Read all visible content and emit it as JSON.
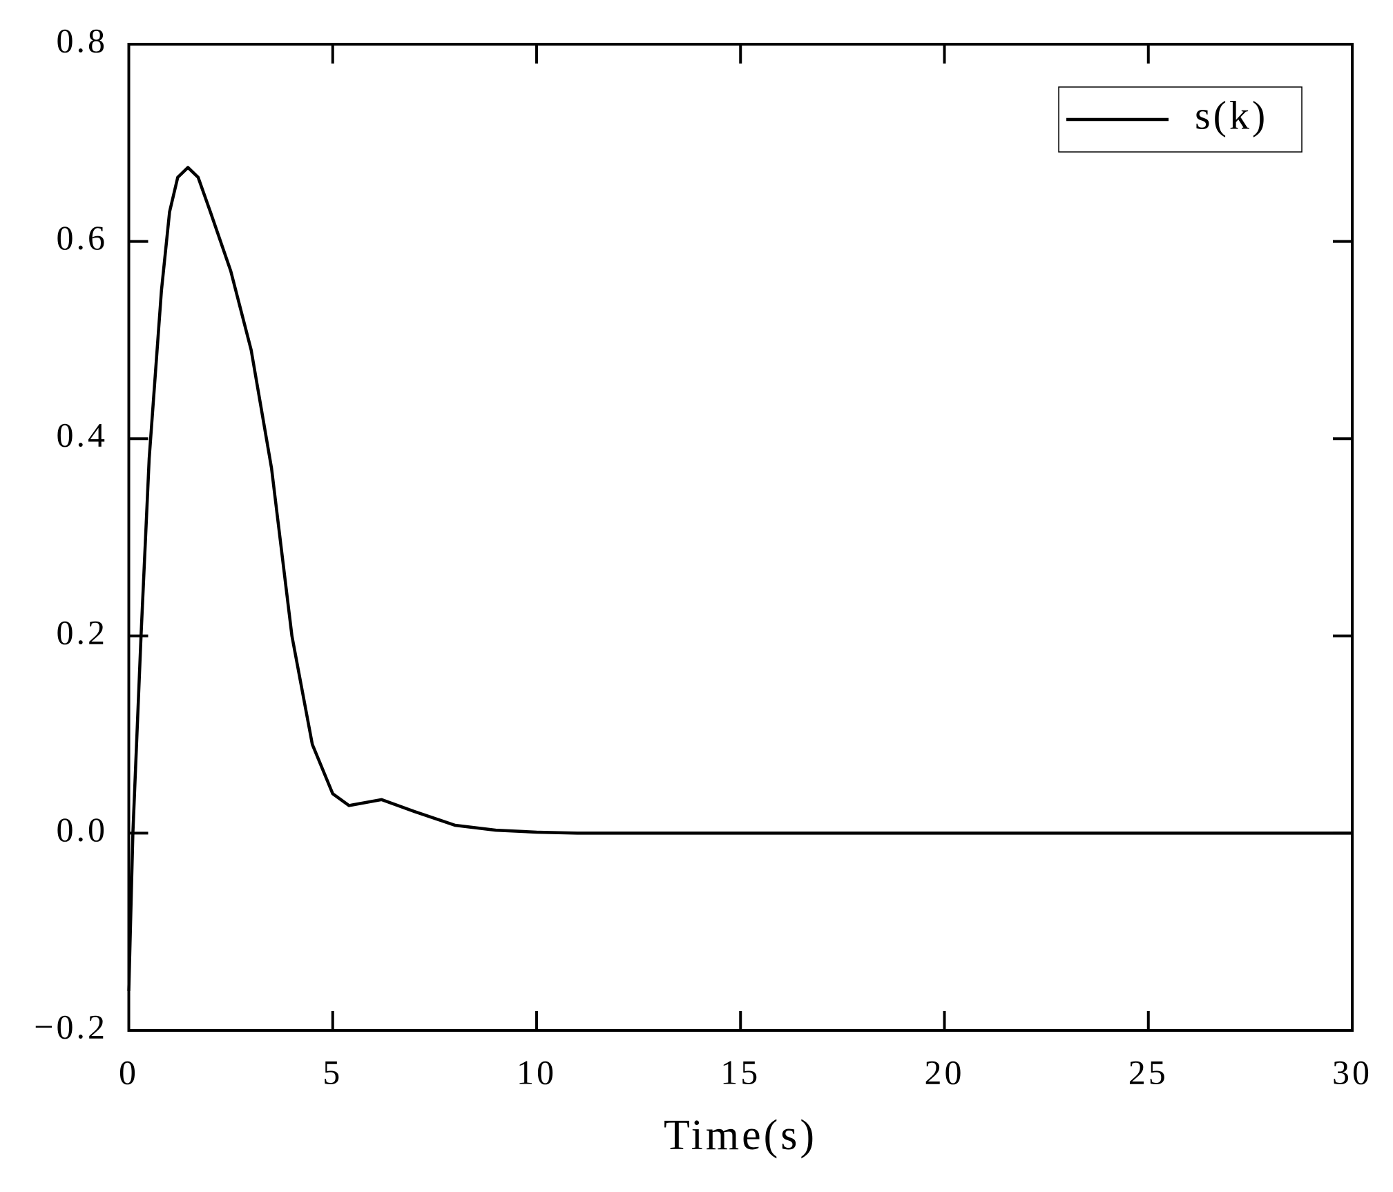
{
  "chart_data": {
    "type": "line",
    "xlabel": "Time(s)",
    "x": [
      0,
      0.1,
      0.3,
      0.5,
      0.8,
      1.0,
      1.2,
      1.45,
      1.7,
      2.0,
      2.5,
      3.0,
      3.5,
      4.0,
      4.5,
      5.0,
      5.4,
      6.2,
      7.0,
      8.0,
      9.0,
      10,
      11,
      30
    ],
    "series": [
      {
        "name": "s(k)",
        "color": "#000000",
        "values": [
          -0.16,
          0.0,
          0.2,
          0.38,
          0.55,
          0.63,
          0.665,
          0.675,
          0.665,
          0.63,
          0.57,
          0.49,
          0.37,
          0.2,
          0.09,
          0.04,
          0.028,
          0.034,
          0.022,
          0.008,
          0.003,
          0.001,
          0,
          0
        ]
      }
    ],
    "xlim": [
      0,
      30
    ],
    "xticks": [
      0,
      5,
      10,
      15,
      20,
      25,
      30
    ],
    "ylim": [
      -0.2,
      0.8
    ],
    "yticks": [
      {
        "value": -0.2,
        "label": "−0.2"
      },
      {
        "value": 0,
        "label": "0.0"
      },
      0.2,
      0.4,
      0.6,
      0.8
    ],
    "legend": "upper-right",
    "grid": false
  }
}
